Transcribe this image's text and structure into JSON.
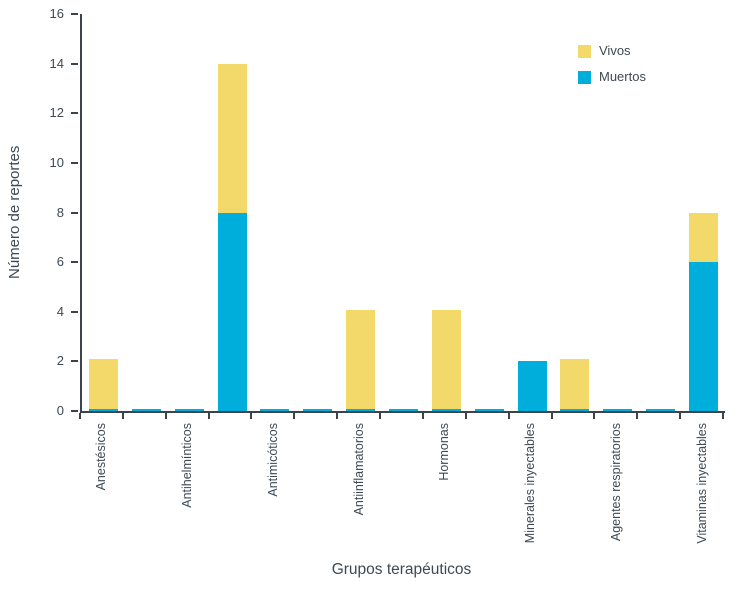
{
  "chart_data": {
    "type": "bar",
    "stacked": true,
    "title": "",
    "xlabel": "Grupos terapéuticos",
    "ylabel": "Número de reportes",
    "ylim": [
      0,
      16
    ],
    "yticks": [
      0,
      2,
      4,
      6,
      8,
      10,
      12,
      14,
      16
    ],
    "grid": false,
    "legend_position": "top-right",
    "axis_color": "#39444F",
    "text_color": "#3E4953",
    "categories": [
      "Anestésicos",
      "Antihelmínticos",
      "Antimicóticos",
      "Antiinflamatorios",
      "Hormonas",
      "Minerales inyectables",
      "Agentes respiratorios",
      "Vitaminas inyectables"
    ],
    "series": [
      {
        "name": "Vivos",
        "color": "#F2D96A",
        "values": [
          2,
          6,
          0,
          4,
          4,
          0,
          2,
          2
        ]
      },
      {
        "name": "Muertos",
        "color": "#00AEDC",
        "values": [
          0,
          8,
          0,
          0,
          0,
          2,
          0,
          6
        ]
      }
    ],
    "render_slots": [
      {
        "label": "Anestésicos",
        "vivos": 2,
        "muertos": 0
      },
      {
        "label": "",
        "vivos": 0,
        "muertos": 0
      },
      {
        "label": "Antihelmínticos",
        "vivos": 0,
        "muertos": 0
      },
      {
        "label": "",
        "vivos": 6,
        "muertos": 8
      },
      {
        "label": "Antimicóticos",
        "vivos": 0,
        "muertos": 0
      },
      {
        "label": "",
        "vivos": 0,
        "muertos": 0
      },
      {
        "label": "Antiinflamatorios",
        "vivos": 4,
        "muertos": 0
      },
      {
        "label": "",
        "vivos": 0,
        "muertos": 0
      },
      {
        "label": "Hormonas",
        "vivos": 4,
        "muertos": 0
      },
      {
        "label": "",
        "vivos": 0,
        "muertos": 0
      },
      {
        "label": "Minerales inyectables",
        "vivos": 0,
        "muertos": 2
      },
      {
        "label": "",
        "vivos": 2,
        "muertos": 0
      },
      {
        "label": "Agentes respiratorios",
        "vivos": 0,
        "muertos": 0
      },
      {
        "label": "",
        "vivos": 0,
        "muertos": 0
      },
      {
        "label": "Vitaminas inyectables",
        "vivos": 2,
        "muertos": 6
      }
    ]
  }
}
